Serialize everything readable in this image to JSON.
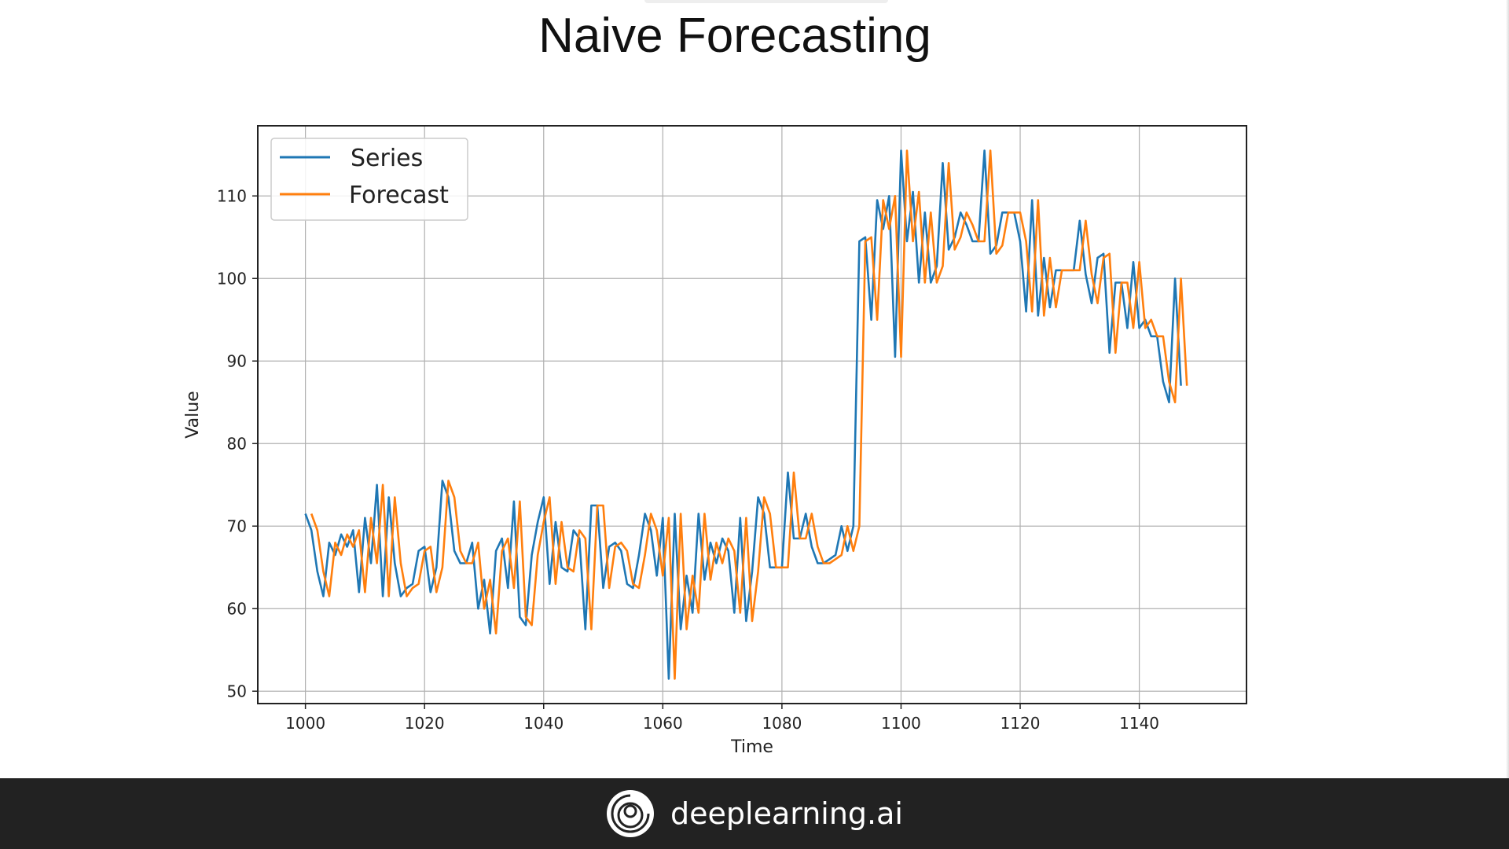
{
  "slide": {
    "title": "Naive Forecasting",
    "footer_brand": "deeplearning.ai"
  },
  "colors": {
    "series": "#1f77b4",
    "forecast": "#ff7f0e",
    "footer_bg": "#222222"
  },
  "chart_data": {
    "type": "line",
    "title": "",
    "xlabel": "Time",
    "ylabel": "Value",
    "xlim": [
      992,
      1158
    ],
    "ylim": [
      48.5,
      118.5
    ],
    "xticks": [
      1000,
      1020,
      1040,
      1060,
      1080,
      1100,
      1120,
      1140
    ],
    "yticks": [
      50,
      60,
      70,
      80,
      90,
      100,
      110
    ],
    "grid": true,
    "legend_position": "top-left",
    "x_start": 1000,
    "series": [
      {
        "name": "Series",
        "x_start": 1000,
        "values": [
          71.5,
          69.5,
          64.5,
          61.5,
          68.0,
          66.5,
          69.0,
          67.5,
          69.5,
          62.0,
          71.0,
          65.5,
          75.0,
          61.5,
          73.5,
          65.5,
          61.5,
          62.5,
          63.0,
          67.0,
          67.5,
          62.0,
          65.0,
          75.5,
          73.5,
          67.0,
          65.5,
          65.5,
          68.0,
          60.0,
          63.5,
          57.0,
          67.0,
          68.5,
          62.5,
          73.0,
          59.0,
          58.0,
          66.5,
          70.5,
          73.5,
          63.0,
          70.5,
          65.0,
          64.5,
          69.5,
          68.5,
          57.5,
          72.5,
          72.5,
          62.5,
          67.5,
          68.0,
          67.0,
          63.0,
          62.5,
          66.5,
          71.5,
          69.5,
          64.0,
          71.0,
          51.5,
          71.5,
          57.5,
          64.0,
          59.5,
          71.5,
          63.5,
          68.0,
          65.5,
          68.5,
          67.0,
          59.5,
          71.0,
          58.5,
          64.5,
          73.5,
          71.5,
          65.0,
          65.0,
          65.0,
          76.5,
          68.5,
          68.5,
          71.5,
          67.5,
          65.5,
          65.5,
          66.0,
          66.5,
          70.0,
          67.0,
          70.0,
          104.5,
          105.0,
          95.0,
          109.5,
          106.0,
          110.0,
          90.5,
          115.5,
          104.5,
          110.5,
          99.5,
          108.0,
          99.5,
          101.5,
          114.0,
          103.5,
          105.0,
          108.0,
          106.5,
          104.5,
          104.5,
          115.5,
          103.0,
          104.0,
          108.0,
          108.0,
          108.0,
          104.5,
          96.0,
          109.5,
          95.5,
          102.5,
          96.5,
          101.0,
          101.0,
          101.0,
          101.0,
          107.0,
          100.5,
          97.0,
          102.5,
          103.0,
          91.0,
          99.5,
          99.5,
          94.0,
          102.0,
          94.0,
          95.0,
          93.0,
          93.0,
          87.5,
          85.0,
          100.0,
          87.0
        ]
      },
      {
        "name": "Forecast",
        "x_start": 1001,
        "values": [
          71.5,
          69.5,
          64.5,
          61.5,
          68.0,
          66.5,
          69.0,
          67.5,
          69.5,
          62.0,
          71.0,
          65.5,
          75.0,
          61.5,
          73.5,
          65.5,
          61.5,
          62.5,
          63.0,
          67.0,
          67.5,
          62.0,
          65.0,
          75.5,
          73.5,
          67.0,
          65.5,
          65.5,
          68.0,
          60.0,
          63.5,
          57.0,
          67.0,
          68.5,
          62.5,
          73.0,
          59.0,
          58.0,
          66.5,
          70.5,
          73.5,
          63.0,
          70.5,
          65.0,
          64.5,
          69.5,
          68.5,
          57.5,
          72.5,
          72.5,
          62.5,
          67.5,
          68.0,
          67.0,
          63.0,
          62.5,
          66.5,
          71.5,
          69.5,
          64.0,
          71.0,
          51.5,
          71.5,
          57.5,
          64.0,
          59.5,
          71.5,
          63.5,
          68.0,
          65.5,
          68.5,
          67.0,
          59.5,
          71.0,
          58.5,
          64.5,
          73.5,
          71.5,
          65.0,
          65.0,
          65.0,
          76.5,
          68.5,
          68.5,
          71.5,
          67.5,
          65.5,
          65.5,
          66.0,
          66.5,
          70.0,
          67.0,
          70.0,
          104.5,
          105.0,
          95.0,
          109.5,
          106.0,
          110.0,
          90.5,
          115.5,
          104.5,
          110.5,
          99.5,
          108.0,
          99.5,
          101.5,
          114.0,
          103.5,
          105.0,
          108.0,
          106.5,
          104.5,
          104.5,
          115.5,
          103.0,
          104.0,
          108.0,
          108.0,
          108.0,
          104.5,
          96.0,
          109.5,
          95.5,
          102.5,
          96.5,
          101.0,
          101.0,
          101.0,
          101.0,
          107.0,
          100.5,
          97.0,
          102.5,
          103.0,
          91.0,
          99.5,
          99.5,
          94.0,
          102.0,
          94.0,
          95.0,
          93.0,
          93.0,
          87.5,
          85.0,
          100.0,
          87.0
        ]
      }
    ]
  }
}
